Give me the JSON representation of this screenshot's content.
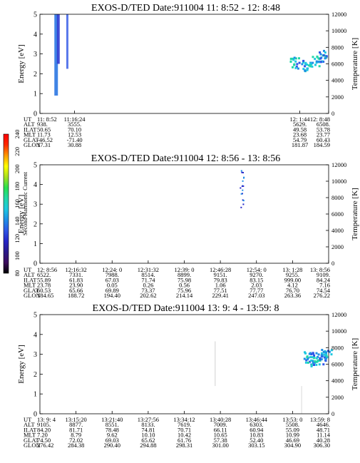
{
  "chart_data": {
    "type": "heatmap",
    "colorbar": {
      "label": "Second Harmonic Current",
      "ticks": [
        "80",
        "100",
        "120",
        "140",
        "160",
        "180",
        "200",
        "220",
        "240"
      ],
      "colors": [
        "#000000",
        "#3c0c5c",
        "#2a1a8a",
        "#2626c8",
        "#2f56e6",
        "#1f8fe6",
        "#1ec8e0",
        "#22d8a8",
        "#28e04e",
        "#a8e01e",
        "#ffff00",
        "#ff9a00",
        "#ff2a00",
        "#ff0000"
      ]
    },
    "panels": [
      {
        "title": "EXOS-D/TED   Date:911004  11: 8:52 - 12: 8:48",
        "ylabel": "Energy [eV]",
        "y2label": "Temperature [K]",
        "ylim": [
          0,
          5
        ],
        "y2lim": [
          0,
          12000
        ],
        "yticks": [
          "0",
          "1",
          "2",
          "3",
          "4",
          "5"
        ],
        "y2ticks": [
          "0",
          "2000",
          "4000",
          "6000",
          "8000",
          "10000",
          "12000"
        ],
        "orbit_labels": [
          "UT",
          "ALT",
          "ILAT",
          "MLT",
          "GLAT",
          "GLON"
        ],
        "orbit_columns": [
          {
            "t": 0.0,
            "values": [
              "11: 8:52",
              "938.",
              "50.65",
              "11.73",
              "-46.52",
              "17.31"
            ]
          },
          {
            "t": 0.12,
            "values": [
              "11:16:24",
              "3555.",
              "70.10",
              "12.53",
              "-71.40",
              "30.88"
            ]
          },
          {
            "t": 0.9,
            "values": [
              "12: 1:44",
              "5629.",
              "49.58",
              "23.68",
              "54.79",
              "181.87"
            ]
          },
          {
            "t": 1.0,
            "values": [
              "12: 8:48",
              "6508.",
              "53.78",
              "23.77",
              "60.43",
              "184.59"
            ]
          }
        ],
        "data_blocks": [
          {
            "t0": 0.0,
            "t1": 0.125,
            "scheme": "green"
          },
          {
            "t0": 0.875,
            "t1": 1.0,
            "scheme": "blue",
            "temperature": [
              [
                0.88,
                6200
              ],
              [
                0.92,
                5900
              ],
              [
                0.95,
                6400
              ],
              [
                0.98,
                7000
              ]
            ]
          }
        ]
      },
      {
        "title": "EXOS-D/TED   Date:911004  12: 8:56 - 13: 8:56",
        "ylabel": "Energy [eV]",
        "y2label": "Temperature [K]",
        "ylim": [
          0,
          5
        ],
        "y2lim": [
          0,
          12000
        ],
        "yticks": [
          "0",
          "1",
          "2",
          "3",
          "4",
          "5"
        ],
        "y2ticks": [
          "0",
          "2000",
          "4000",
          "6000",
          "8000",
          "10000",
          "12000"
        ],
        "orbit_labels": [
          "UT",
          "ALT",
          "ILAT",
          "MLT",
          "GLAT",
          "GLON"
        ],
        "orbit_columns": [
          {
            "t": 0.0,
            "values": [
              "12: 8:56",
              "6522.",
              "55.89",
              "23.78",
              "60.53",
              "184.65"
            ]
          },
          {
            "t": 0.125,
            "values": [
              "12:16:32",
              "7331.",
              "61.83",
              "23.90",
              "65.66",
              "188.72"
            ]
          },
          {
            "t": 0.25,
            "values": [
              "12:24: 0",
              "7988.",
              "67.03",
              "0.05",
              "69.89",
              "194.40"
            ]
          },
          {
            "t": 0.375,
            "values": [
              "12:31:32",
              "8514.",
              "71.74",
              "0.26",
              "73.37",
              "202.62"
            ]
          },
          {
            "t": 0.5,
            "values": [
              "12:39: 0",
              "8899.",
              "75.98",
              "0.56",
              "75.96",
              "214.14"
            ]
          },
          {
            "t": 0.625,
            "values": [
              "12:46:28",
              "9151.",
              "79.83",
              "1.06",
              "77.51",
              "229.41"
            ]
          },
          {
            "t": 0.75,
            "values": [
              "12:54: 0",
              "9270.",
              "83.15",
              "2.03",
              "77.77",
              "247.03"
            ]
          },
          {
            "t": 0.875,
            "values": [
              "13: 1:28",
              "9255.",
              "999.00",
              "4.12",
              "76.70",
              "263.36"
            ]
          },
          {
            "t": 1.0,
            "values": [
              "13: 8:56",
              "9109.",
              "84.24",
              "7.16",
              "74.54",
              "276.22"
            ]
          }
        ],
        "data_blocks": [
          {
            "t0": 0.0,
            "t1": 0.69,
            "scheme": "blue"
          },
          {
            "t0": 0.738,
            "t1": 1.0,
            "scheme": "blue"
          }
        ]
      },
      {
        "title": "EXOS-D/TED   Date:911004  13: 9: 4 - 13:59: 8",
        "ylabel": "Energy [eV]",
        "y2label": "Temperature [K]",
        "ylim": [
          0,
          5
        ],
        "y2lim": [
          0,
          12000
        ],
        "yticks": [
          "0",
          "1",
          "2",
          "3",
          "4",
          "5"
        ],
        "y2ticks": [
          "0",
          "2000",
          "4000",
          "6000",
          "8000",
          "10000",
          "12000"
        ],
        "orbit_labels": [
          "UT",
          "ALT",
          "ILAT",
          "MLT",
          "GLAT",
          "GLON"
        ],
        "orbit_columns": [
          {
            "t": 0.0,
            "values": [
              "13: 9: 4",
              "9105.",
              "84.20",
              "7.20",
              "74.50",
              "276.42"
            ]
          },
          {
            "t": 0.125,
            "values": [
              "13:15:20",
              "8877.",
              "81.71",
              "8.79",
              "72.02",
              "284.38"
            ]
          },
          {
            "t": 0.25,
            "values": [
              "13:21:40",
              "8551.",
              "78.48",
              "9.62",
              "69.03",
              "290.40"
            ]
          },
          {
            "t": 0.375,
            "values": [
              "13:27:56",
              "8133.",
              "74.81",
              "10.10",
              "65.62",
              "294.88"
            ]
          },
          {
            "t": 0.5,
            "values": [
              "13:34:12",
              "7619.",
              "70.71",
              "10.42",
              "61.76",
              "298.31"
            ]
          },
          {
            "t": 0.625,
            "values": [
              "13:40:28",
              "7009.",
              "66.11",
              "10.65",
              "57.38",
              "301.00"
            ]
          },
          {
            "t": 0.75,
            "values": [
              "13:46:44",
              "6303.",
              "60.94",
              "10.83",
              "52.40",
              "303.15"
            ]
          },
          {
            "t": 0.875,
            "values": [
              "13:53: 0",
              "5508.",
              "55.09",
              "10.99",
              "46.69",
              "304.90"
            ]
          },
          {
            "t": 1.0,
            "values": [
              "13:59: 8",
              "4646.",
              "48.71",
              "11.14",
              "40.28",
              "306.30"
            ]
          }
        ],
        "data_blocks": [
          {
            "t0": 0.0,
            "t1": 1.0,
            "scheme": "blue",
            "temperature": [
              [
                0.93,
                7000
              ],
              [
                0.95,
                6500
              ],
              [
                0.97,
                6800
              ],
              [
                0.99,
                7400
              ]
            ]
          }
        ]
      }
    ]
  }
}
